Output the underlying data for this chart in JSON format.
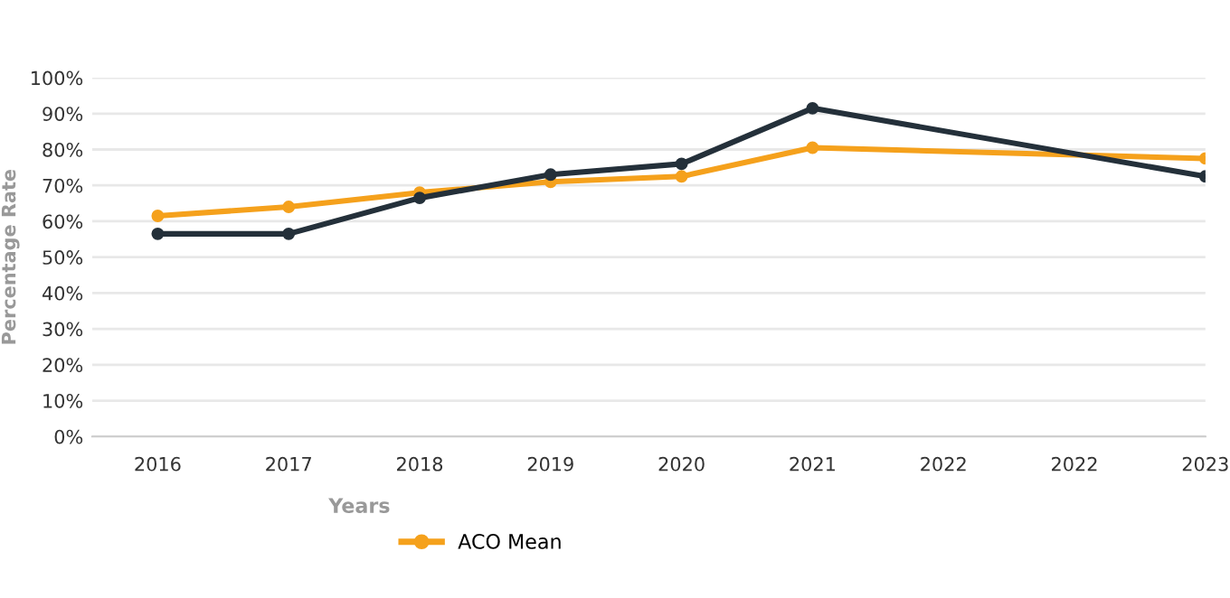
{
  "chart_data": {
    "type": "line",
    "xlabel": "Years",
    "ylabel": "Percentage Rate",
    "categories": [
      "2016",
      "2017",
      "2018",
      "2019",
      "2020",
      "2021",
      "2022",
      "2022",
      "2023"
    ],
    "series": [
      {
        "color": "#24303a",
        "values": [
          56.5,
          56.5,
          66.5,
          73,
          76,
          91.5,
          null,
          null,
          72.5
        ]
      },
      {
        "name": "ACO Mean",
        "color": "#f5a11c",
        "values": [
          61.5,
          64,
          68,
          71,
          72.5,
          80.5,
          null,
          null,
          77.5
        ]
      }
    ],
    "ylim": [
      0,
      100
    ],
    "yticks": [
      {
        "value": 0,
        "label": "0%"
      },
      {
        "value": 10,
        "label": "10%"
      },
      {
        "value": 20,
        "label": "20%"
      },
      {
        "value": 30,
        "label": "30%"
      },
      {
        "value": 40,
        "label": "40%"
      },
      {
        "value": 50,
        "label": "50%"
      },
      {
        "value": 60,
        "label": "60%"
      },
      {
        "value": 70,
        "label": "70%"
      },
      {
        "value": 80,
        "label": "80%"
      },
      {
        "value": 90,
        "label": "90%"
      },
      {
        "value": 100,
        "label": "100%"
      }
    ],
    "grid": "y",
    "legend": "bottom",
    "marker": "circle",
    "line_style": "solid"
  }
}
